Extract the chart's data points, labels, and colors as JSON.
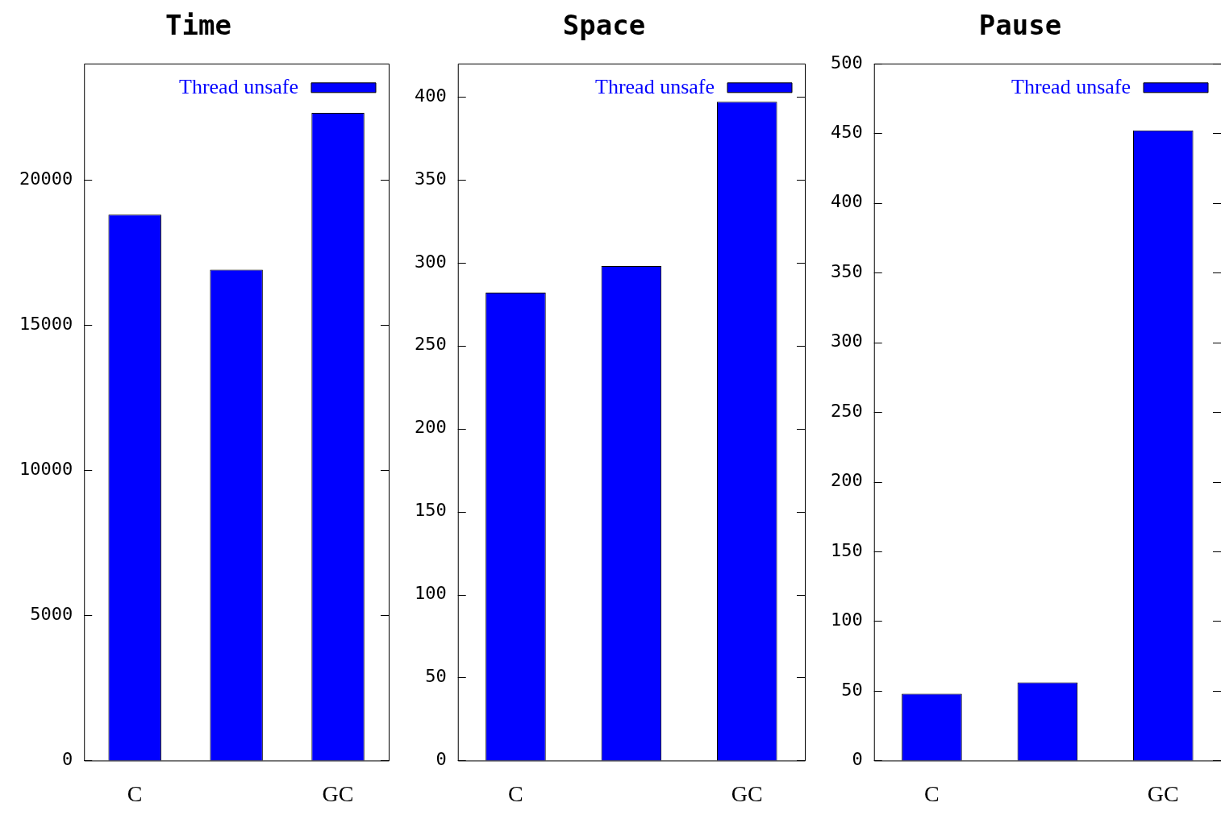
{
  "chart_data": [
    {
      "type": "bar",
      "title": "Time",
      "categories": [
        "C",
        null,
        "GC"
      ],
      "series": [
        {
          "name": "Thread unsafe",
          "color": "#0000ff",
          "values": [
            18800,
            16900,
            22300
          ]
        }
      ],
      "ylim": [
        0,
        24000
      ],
      "yticks": [
        0,
        5000,
        10000,
        15000,
        20000
      ],
      "grid": false,
      "legend": "top right"
    },
    {
      "type": "bar",
      "title": "Space",
      "categories": [
        "C",
        null,
        "GC"
      ],
      "series": [
        {
          "name": "Thread unsafe",
          "color": "#0000ff",
          "values": [
            282,
            298,
            397
          ]
        }
      ],
      "ylim": [
        0,
        420
      ],
      "yticks": [
        0,
        50,
        100,
        150,
        200,
        250,
        300,
        350,
        400
      ],
      "grid": false,
      "legend": "top right"
    },
    {
      "type": "bar",
      "title": "Pause",
      "categories": [
        "C",
        null,
        "GC"
      ],
      "series": [
        {
          "name": "Thread unsafe",
          "color": "#0000ff",
          "values": [
            48,
            56,
            452
          ]
        }
      ],
      "ylim": [
        0,
        500
      ],
      "yticks": [
        0,
        50,
        100,
        150,
        200,
        250,
        300,
        350,
        400,
        450,
        500
      ],
      "grid": false,
      "legend": "top right"
    }
  ]
}
